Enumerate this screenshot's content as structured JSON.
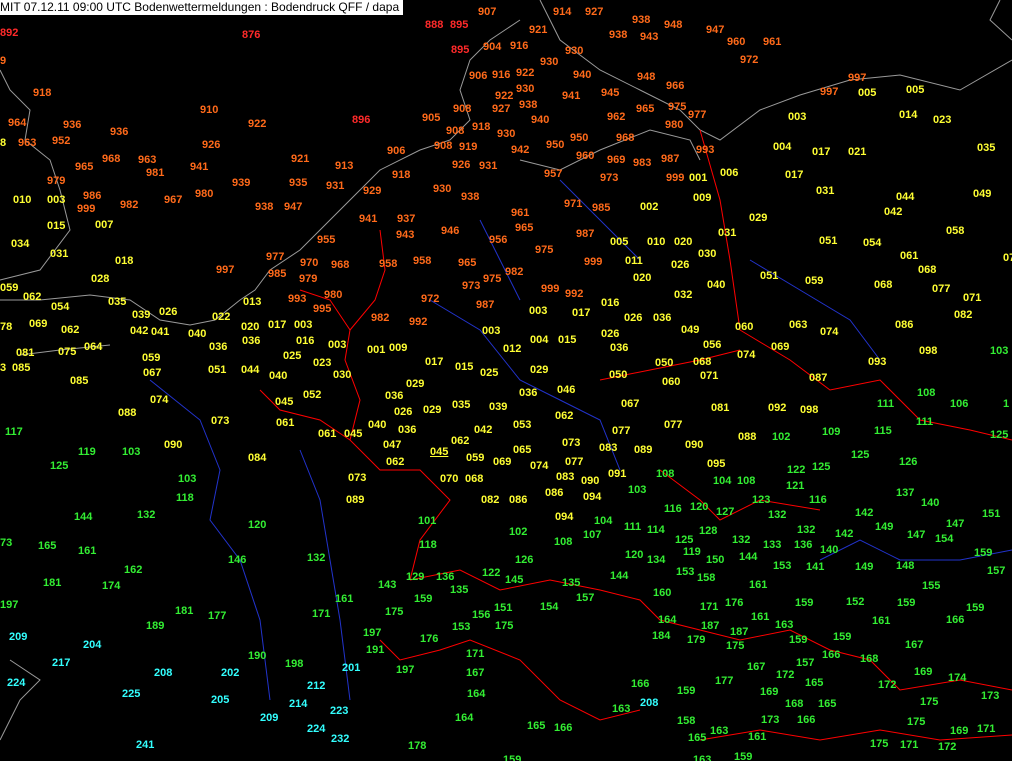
{
  "title": "MIT 07.12.11 09:00 UTC  Bodenwettermeldungen :  Bodendruck QFF / dapa",
  "colors": {
    "below_900": "#ff2a2a",
    "range_900": "#ff6a1a",
    "range_000": "#ffff33",
    "range_100": "#33ee33",
    "range_200": "#33ffff",
    "coast": "#9a9a9a",
    "border": "#ff0000",
    "river": "#2233cc"
  },
  "readings": [
    "892",
    "876",
    "888",
    "895",
    "895",
    "896",
    "907",
    "914",
    "927",
    "938",
    "948",
    "947",
    "960",
    "961",
    "972",
    "921",
    "938",
    "943",
    "904",
    "916",
    "930",
    "930",
    "906",
    "916",
    "922",
    "940",
    "948",
    "966",
    "930",
    "922",
    "941",
    "945",
    "9",
    "918",
    "910",
    "922",
    "905",
    "908",
    "927",
    "938",
    "965",
    "975",
    "977",
    "962",
    "940",
    "980",
    "964",
    "936",
    "936",
    "918",
    "930",
    "950",
    "968",
    "908",
    "919",
    "950",
    "8",
    "963",
    "952",
    "926",
    "906",
    "908",
    "942",
    "960",
    "969",
    "983",
    "987",
    "993",
    "968",
    "963",
    "921",
    "913",
    "926",
    "931",
    "965",
    "981",
    "941",
    "918",
    "957",
    "973",
    "999",
    "979",
    "939",
    "935",
    "931",
    "929",
    "930",
    "938",
    "986",
    "980",
    "967",
    "982",
    "999",
    "938",
    "947",
    "971",
    "985",
    "961",
    "941",
    "937",
    "965",
    "946",
    "987",
    "943",
    "955",
    "956",
    "975",
    "977",
    "970",
    "968",
    "958",
    "958",
    "965",
    "999",
    "982",
    "975",
    "997",
    "985",
    "979",
    "973",
    "999",
    "992",
    "980",
    "993",
    "995",
    "972",
    "987",
    "982",
    "992",
    "997",
    "997",
    "005",
    "005",
    "014",
    "023",
    "003",
    "004",
    "017",
    "021",
    "035",
    "001",
    "006",
    "017",
    "031",
    "044",
    "049",
    "009",
    "002",
    "042",
    "029",
    "058",
    "031",
    "005",
    "010",
    "020",
    "051",
    "054",
    "011",
    "030",
    "026",
    "061",
    "068",
    "07",
    "051",
    "059",
    "068",
    "077",
    "020",
    "040",
    "032",
    "071",
    "082",
    "016",
    "017",
    "003",
    "026",
    "036",
    "060",
    "063",
    "074",
    "086",
    "049",
    "003",
    "004",
    "015",
    "026",
    "012",
    "036",
    "056",
    "074",
    "069",
    "098",
    "068",
    "050",
    "093",
    "017",
    "015",
    "025",
    "029",
    "050",
    "071",
    "060",
    "087",
    "046",
    "029",
    "036",
    "035",
    "039",
    "036",
    "067",
    "081",
    "092",
    "098",
    "026",
    "029",
    "062",
    "040",
    "036",
    "042",
    "053",
    "077",
    "077",
    "088",
    "047",
    "062",
    "073",
    "083",
    "089",
    "090",
    "045",
    "059",
    "065",
    "069",
    "074",
    "077",
    "095",
    "062",
    "083",
    "090",
    "091",
    "073",
    "070",
    "068",
    "094",
    "086",
    "082",
    "086",
    "089",
    "094",
    "010",
    "003",
    "015",
    "007",
    "034",
    "031",
    "018",
    "028",
    "059",
    "062",
    "054",
    "035",
    "039",
    "026",
    "022",
    "013",
    "78",
    "069",
    "062",
    "042",
    "041",
    "040",
    "020",
    "017",
    "003",
    "036",
    "016",
    "036",
    "081",
    "075",
    "064",
    "059",
    "003",
    "001",
    "009",
    "3",
    "085",
    "067",
    "025",
    "023",
    "051",
    "044",
    "040",
    "030",
    "085",
    "074",
    "052",
    "045",
    "088",
    "073",
    "061",
    "061",
    "045",
    "090",
    "084",
    "103",
    "111",
    "108",
    "106",
    "1",
    "115",
    "111",
    "125",
    "102",
    "109",
    "125",
    "126",
    "122",
    "125",
    "108",
    "104",
    "108",
    "121",
    "103",
    "137",
    "140",
    "123",
    "116",
    "116",
    "120",
    "127",
    "132",
    "142",
    "151",
    "104",
    "101",
    "149",
    "147",
    "111",
    "114",
    "128",
    "132",
    "147",
    "154",
    "102",
    "107",
    "125",
    "132",
    "133",
    "136",
    "140",
    "142",
    "118",
    "108",
    "120",
    "134",
    "119",
    "150",
    "144",
    "153",
    "141",
    "149",
    "148",
    "159",
    "157",
    "126",
    "153",
    "158",
    "144",
    "122",
    "136",
    "129",
    "145",
    "135",
    "155",
    "143",
    "161",
    "135",
    "159",
    "160",
    "157",
    "152",
    "159",
    "159",
    "176",
    "171",
    "151",
    "154",
    "175",
    "156",
    "166",
    "159",
    "161",
    "163",
    "164",
    "161",
    "153",
    "175",
    "187",
    "187",
    "184",
    "176",
    "179",
    "175",
    "159",
    "159",
    "197",
    "167",
    "191",
    "171",
    "166",
    "168",
    "157",
    "167",
    "172",
    "165",
    "169",
    "174",
    "197",
    "167",
    "172",
    "166",
    "177",
    "169",
    "173",
    "164",
    "159",
    "175",
    "168",
    "165",
    "163",
    "173",
    "166",
    "175",
    "164",
    "158",
    "169",
    "171",
    "165",
    "166",
    "163",
    "165",
    "161",
    "178",
    "175",
    "171",
    "172",
    "159",
    "159",
    "163",
    "117",
    "119",
    "103",
    "125",
    "103",
    "118",
    "144",
    "132",
    "120",
    "73",
    "165",
    "161",
    "146",
    "132",
    "162",
    "181",
    "174",
    "197",
    "181",
    "177",
    "171",
    "161",
    "189",
    "190",
    "198",
    "209",
    "204",
    "217",
    "208",
    "202",
    "201",
    "224",
    "225",
    "212",
    "205",
    "214",
    "223",
    "209",
    "224",
    "232",
    "241",
    "208"
  ],
  "underlined_reading": "045"
}
